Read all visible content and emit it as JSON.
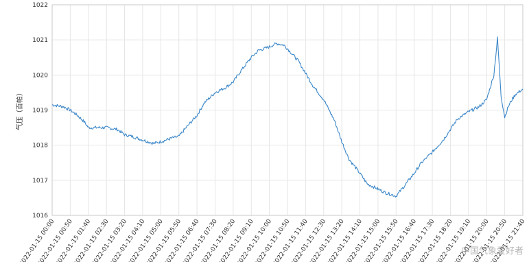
{
  "chart_data": {
    "type": "line",
    "title": "",
    "xlabel": "",
    "ylabel": "气压（百帕）",
    "ylim": [
      1016,
      1022
    ],
    "yticks": [
      1016,
      1017,
      1018,
      1019,
      1020,
      1021,
      1022
    ],
    "grid": true,
    "legend": "none",
    "x_tick_labels": [
      "2022-01-15 00:00",
      "2022-01-15 00:50",
      "2022-01-15 01:40",
      "2022-01-15 02:30",
      "2022-01-15 03:20",
      "2022-01-15 04:10",
      "2022-01-15 05:00",
      "2022-01-15 05:50",
      "2022-01-15 06:40",
      "2022-01-15 07:30",
      "2022-01-15 08:20",
      "2022-01-15 09:10",
      "2022-01-15 10:00",
      "2022-01-15 10:50",
      "2022-01-15 11:40",
      "2022-01-15 12:30",
      "2022-01-15 13:20",
      "2022-01-15 14:10",
      "2022-01-15 15:00",
      "2022-01-15 15:50",
      "2022-01-15 16:40",
      "2022-01-15 17:30",
      "2022-01-15 18:20",
      "2022-01-15 19:10",
      "2022-01-15 20:00",
      "2022-01-15 20:50",
      "2022-01-15 21:40"
    ],
    "series": [
      {
        "color": "#3a86c8",
        "x": [
          "00:00",
          "00:30",
          "00:50",
          "01:10",
          "01:30",
          "01:40",
          "02:00",
          "02:30",
          "03:00",
          "03:20",
          "03:40",
          "04:10",
          "04:40",
          "05:00",
          "05:30",
          "05:50",
          "06:10",
          "06:40",
          "07:00",
          "07:30",
          "08:00",
          "08:20",
          "08:40",
          "09:10",
          "09:30",
          "10:00",
          "10:20",
          "10:40",
          "10:50",
          "11:20",
          "11:40",
          "12:00",
          "12:30",
          "13:00",
          "13:20",
          "13:40",
          "14:10",
          "14:30",
          "15:00",
          "15:20",
          "15:50",
          "16:10",
          "16:40",
          "17:00",
          "17:30",
          "18:00",
          "18:20",
          "18:40",
          "19:10",
          "19:40",
          "20:00",
          "20:20",
          "20:30",
          "20:40",
          "20:50",
          "21:00",
          "21:10",
          "21:20",
          "21:40"
        ],
        "values": [
          1019.15,
          1019.1,
          1019.0,
          1018.85,
          1018.65,
          1018.5,
          1018.5,
          1018.5,
          1018.45,
          1018.3,
          1018.25,
          1018.15,
          1018.05,
          1018.1,
          1018.2,
          1018.25,
          1018.5,
          1018.85,
          1019.2,
          1019.5,
          1019.65,
          1019.8,
          1020.1,
          1020.5,
          1020.7,
          1020.8,
          1020.9,
          1020.85,
          1020.75,
          1020.4,
          1020.05,
          1019.7,
          1019.3,
          1018.7,
          1018.1,
          1017.6,
          1017.2,
          1016.9,
          1016.75,
          1016.65,
          1016.55,
          1016.8,
          1017.2,
          1017.5,
          1017.8,
          1018.15,
          1018.45,
          1018.75,
          1018.95,
          1019.1,
          1019.3,
          1020.0,
          1021.05,
          1019.4,
          1018.8,
          1019.1,
          1019.3,
          1019.45,
          1019.6
        ]
      }
    ]
  },
  "watermark_text": "中国气象爱好者"
}
